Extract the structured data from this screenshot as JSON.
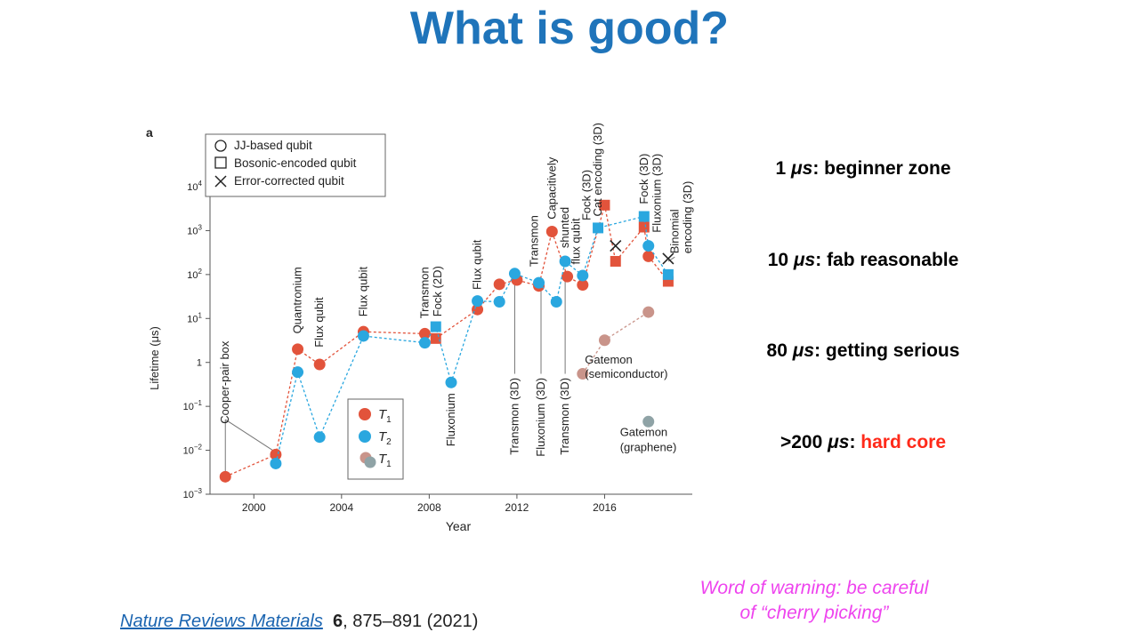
{
  "slide": {
    "title": "What is good?",
    "notes": [
      {
        "prefix": "1 ",
        "unit": "μs",
        "sep": ": ",
        "text": "beginner zone",
        "highlight": false
      },
      {
        "prefix": "10 ",
        "unit": "μs",
        "sep": ": ",
        "text": "fab reasonable",
        "highlight": false
      },
      {
        "prefix": "80 ",
        "unit": "μs",
        "sep": ": ",
        "text": "getting serious",
        "highlight": false
      },
      {
        "prefix": ">200 ",
        "unit": "μs",
        "sep": ": ",
        "text": "hard core",
        "highlight": true
      }
    ],
    "warning_line1": "Word of warning: be careful",
    "warning_line2": "of “cherry picking”",
    "citation": {
      "journal": "Nature Reviews Materials",
      "volume": "6",
      "pages": ", 875–891 (2021)"
    }
  },
  "colors": {
    "title": "#1f74ba",
    "t1": "#e2533b",
    "t2": "#2aa7df",
    "t1_other": "#c9948a",
    "t2_other": "#8fa3a6",
    "hard_core": "#ff2a1a",
    "warning": "#ee44ee"
  },
  "chart_data": {
    "type": "scatter",
    "panel_label": "a",
    "xlabel": "Year",
    "ylabel": "Lifetime (μs)",
    "yscale": "log",
    "xlim": [
      1998,
      2020
    ],
    "ylim": [
      0.001,
      10000
    ],
    "x_ticks": [
      2000,
      2004,
      2008,
      2012,
      2016
    ],
    "y_ticks": [
      {
        "value": 0.001,
        "base": "10",
        "exp": "−3"
      },
      {
        "value": 0.01,
        "base": "10",
        "exp": "−2"
      },
      {
        "value": 0.1,
        "base": "10",
        "exp": "−1"
      },
      {
        "value": 1,
        "base": "1",
        "exp": ""
      },
      {
        "value": 10,
        "base": "10",
        "exp": "1"
      },
      {
        "value": 100,
        "base": "10",
        "exp": "2"
      },
      {
        "value": 1000,
        "base": "10",
        "exp": "3"
      },
      {
        "value": 10000,
        "base": "10",
        "exp": "4"
      }
    ],
    "shape_legend": [
      "JJ-based qubit",
      "Bosonic-encoded qubit",
      "Error-corrected qubit"
    ],
    "series_legend": [
      {
        "name": "T",
        "sub": "1"
      },
      {
        "name": "T",
        "sub": "2"
      },
      {
        "name": "T",
        "sub": "1"
      }
    ],
    "series": [
      {
        "name": "T1",
        "color": "#e2533b",
        "points": [
          {
            "x": 1998.7,
            "y": 0.0025,
            "m": "circle"
          },
          {
            "x": 2001.0,
            "y": 0.008,
            "m": "circle"
          },
          {
            "x": 2002.0,
            "y": 2.0,
            "m": "circle"
          },
          {
            "x": 2003.0,
            "y": 0.9,
            "m": "circle"
          },
          {
            "x": 2005.0,
            "y": 5.0,
            "m": "circle"
          },
          {
            "x": 2007.8,
            "y": 4.5,
            "m": "circle"
          },
          {
            "x": 2008.3,
            "y": 3.5,
            "m": "square"
          },
          {
            "x": 2010.2,
            "y": 16,
            "m": "circle"
          },
          {
            "x": 2011.2,
            "y": 60,
            "m": "circle"
          },
          {
            "x": 2012.0,
            "y": 75,
            "m": "circle"
          },
          {
            "x": 2013.0,
            "y": 55,
            "m": "circle"
          },
          {
            "x": 2013.6,
            "y": 950,
            "m": "circle"
          },
          {
            "x": 2014.3,
            "y": 90,
            "m": "circle"
          },
          {
            "x": 2015.0,
            "y": 58,
            "m": "circle"
          },
          {
            "x": 2016.0,
            "y": 3800,
            "m": "square"
          },
          {
            "x": 2016.5,
            "y": 200,
            "m": "square"
          },
          {
            "x": 2017.8,
            "y": 1200,
            "m": "square"
          },
          {
            "x": 2018.0,
            "y": 260,
            "m": "circle"
          },
          {
            "x": 2018.9,
            "y": 70,
            "m": "square"
          }
        ]
      },
      {
        "name": "T2",
        "color": "#2aa7df",
        "points": [
          {
            "x": 2001.0,
            "y": 0.005,
            "m": "circle"
          },
          {
            "x": 2002.0,
            "y": 0.6,
            "m": "circle"
          },
          {
            "x": 2003.0,
            "y": 0.02,
            "m": "circle"
          },
          {
            "x": 2005.0,
            "y": 4.0,
            "m": "circle"
          },
          {
            "x": 2007.8,
            "y": 2.8,
            "m": "circle"
          },
          {
            "x": 2008.3,
            "y": 6.5,
            "m": "square"
          },
          {
            "x": 2009.0,
            "y": 0.35,
            "m": "circle"
          },
          {
            "x": 2010.2,
            "y": 25,
            "m": "circle"
          },
          {
            "x": 2011.2,
            "y": 24,
            "m": "circle"
          },
          {
            "x": 2011.9,
            "y": 105,
            "m": "circle"
          },
          {
            "x": 2013.0,
            "y": 65,
            "m": "circle"
          },
          {
            "x": 2013.8,
            "y": 24,
            "m": "circle"
          },
          {
            "x": 2014.2,
            "y": 200,
            "m": "circle"
          },
          {
            "x": 2015.0,
            "y": 95,
            "m": "circle"
          },
          {
            "x": 2015.7,
            "y": 1150,
            "m": "square"
          },
          {
            "x": 2017.8,
            "y": 2100,
            "m": "square"
          },
          {
            "x": 2018.0,
            "y": 450,
            "m": "circle"
          },
          {
            "x": 2018.9,
            "y": 100,
            "m": "square"
          }
        ]
      },
      {
        "name": "T1 (Gatemon, semiconductor)",
        "color": "#c9948a",
        "points": [
          {
            "x": 2015.0,
            "y": 0.55,
            "m": "circle"
          },
          {
            "x": 2016.0,
            "y": 3.2,
            "m": "circle"
          },
          {
            "x": 2018.0,
            "y": 14,
            "m": "circle"
          }
        ]
      },
      {
        "name": "T1 (Gatemon, graphene)",
        "color": "#8fa3a6",
        "points": [
          {
            "x": 2018.0,
            "y": 0.045,
            "m": "circle"
          }
        ]
      }
    ],
    "error_corrected": [
      {
        "x": 2016.5,
        "y": 450
      },
      {
        "x": 2018.9,
        "y": 230
      }
    ],
    "annotations": [
      {
        "text": "Cooper-pair box",
        "x": 1998.7,
        "y": 0.04,
        "rot": true
      },
      {
        "text": "Quantronium",
        "x": 2002.0,
        "y": 4.5,
        "rot": true
      },
      {
        "text": "Flux qubit",
        "x": 2003.0,
        "y": 2.2,
        "rot": true
      },
      {
        "text": "Flux qubit",
        "x": 2005.0,
        "y": 11,
        "rot": true
      },
      {
        "text": "Transmon",
        "x": 2007.8,
        "y": 10,
        "rot": true
      },
      {
        "text": "Fock (2D)",
        "x": 2008.4,
        "y": 11,
        "rot": true
      },
      {
        "text": "Fluxonium",
        "x": 2009.0,
        "y": 0.2,
        "rot": true,
        "top": true
      },
      {
        "text": "Flux qubit",
        "x": 2010.2,
        "y": 45,
        "rot": true
      },
      {
        "text": "Transmon (3D)",
        "x": 2011.9,
        "y": 0.45,
        "rot": true,
        "top": true
      },
      {
        "text": "Transmon",
        "x": 2012.8,
        "y": 150,
        "rot": true
      },
      {
        "text": "Fluxonium (3D)",
        "x": 2013.1,
        "y": 0.45,
        "rot": true,
        "top": true
      },
      {
        "text": "Capacitively",
        "x": 2013.6,
        "y": 1800,
        "rot": true
      },
      {
        "text": "shunted",
        "x": 2014.2,
        "y": 400,
        "rot": true
      },
      {
        "text": "Transmon (3D)",
        "x": 2014.2,
        "y": 0.45,
        "rot": true,
        "top": true
      },
      {
        "text": "flux qubit",
        "x": 2014.7,
        "y": 170,
        "rot": true
      },
      {
        "text": "Fock (3D)",
        "x": 2015.2,
        "y": 1700,
        "rot": true
      },
      {
        "text": "Cat encoding (3D)",
        "x": 2015.7,
        "y": 2100,
        "rot": true
      },
      {
        "text": "Fock (3D)",
        "x": 2017.8,
        "y": 4000,
        "rot": true
      },
      {
        "text": "Fluxonium (3D)",
        "x": 2018.4,
        "y": 900,
        "rot": true
      },
      {
        "text": "Binomial",
        "x": 2019.2,
        "y": 300,
        "rot": true
      },
      {
        "text": "encoding (3D)",
        "x": 2019.8,
        "y": 300,
        "rot": true
      },
      {
        "text": "Gatemon",
        "x": 2015.1,
        "y": 0.95,
        "rot": false
      },
      {
        "text": "(semiconductor)",
        "x": 2015.1,
        "y": 0.45,
        "rot": false
      },
      {
        "text": "Gatemon",
        "x": 2016.7,
        "y": 0.021,
        "rot": false
      },
      {
        "text": "(graphene)",
        "x": 2016.7,
        "y": 0.0095,
        "rot": false
      }
    ]
  }
}
